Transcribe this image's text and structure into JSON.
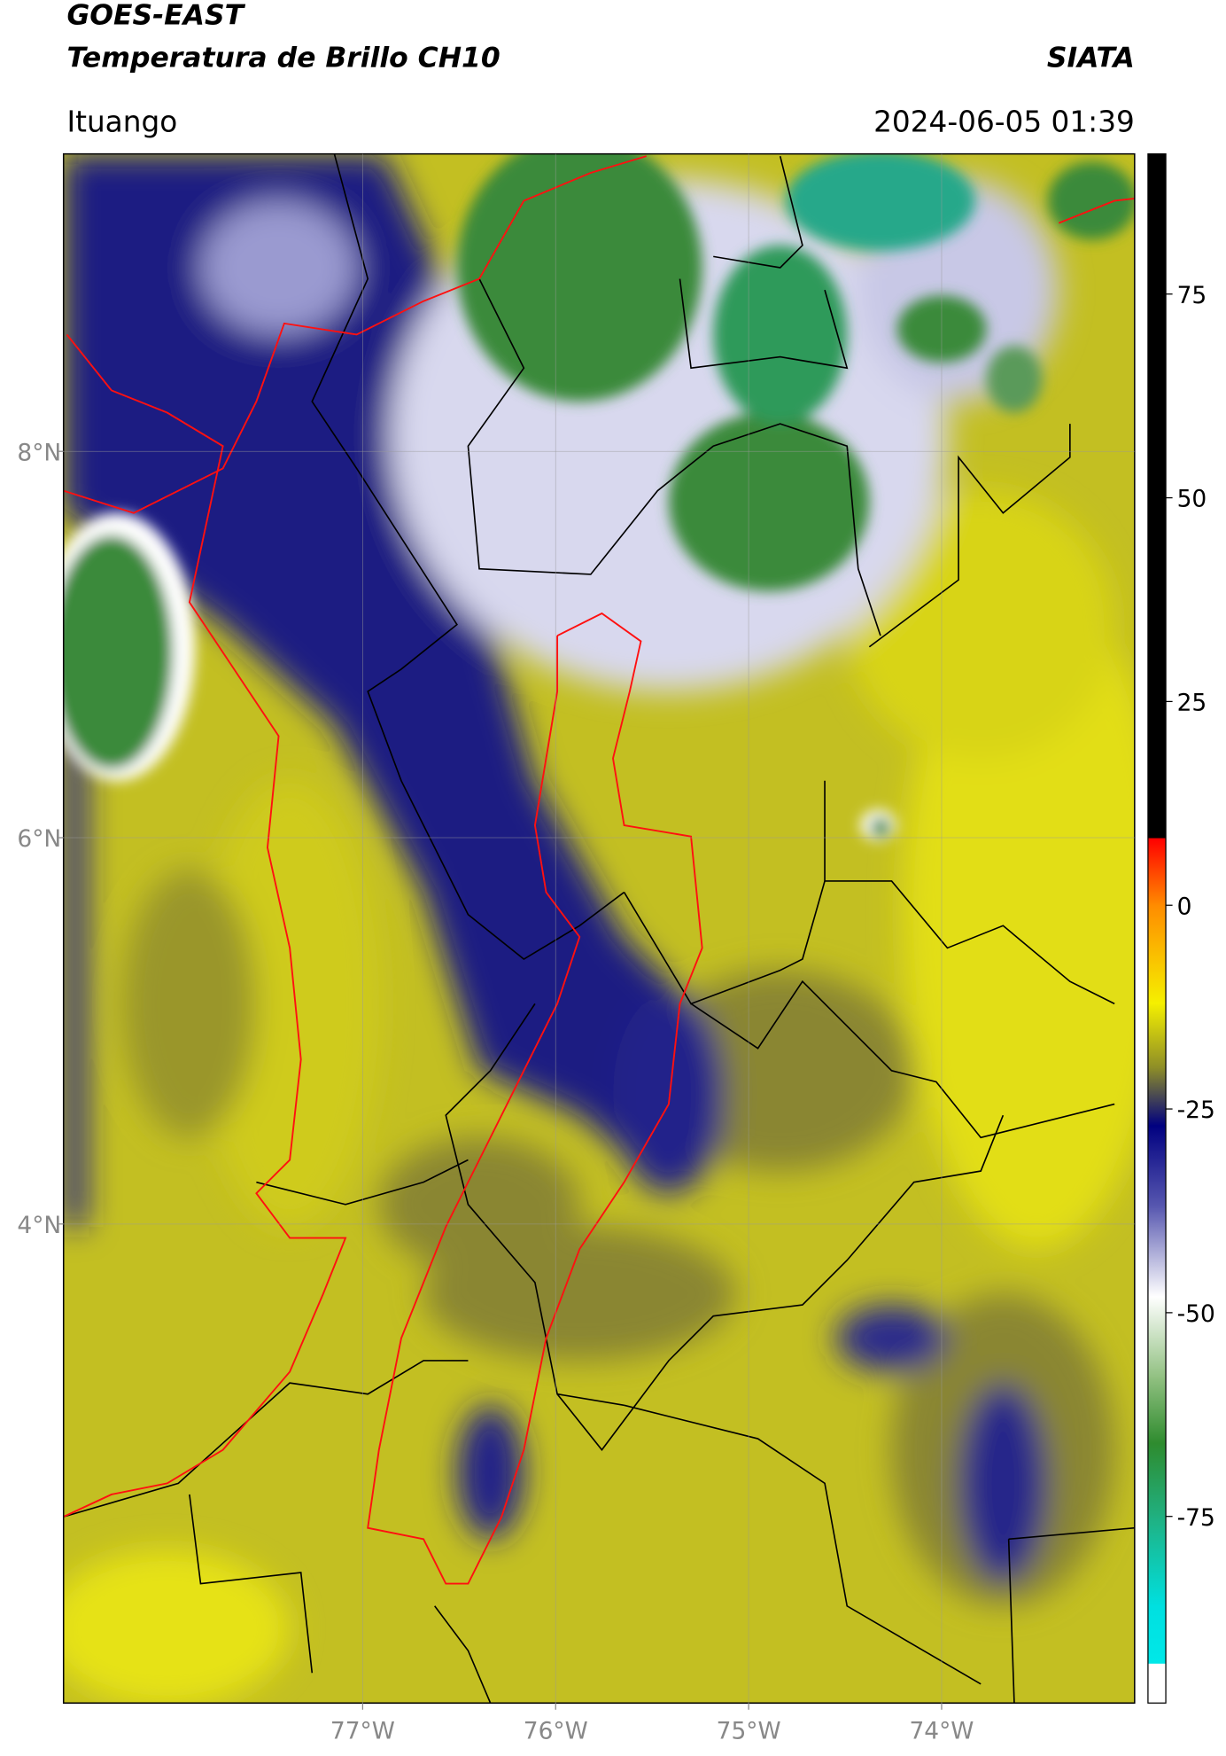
{
  "chart_data": {
    "type": "map",
    "title": "GOES-EAST",
    "subtitle": "Temperatura de Brillo CH10",
    "brand": "SIATA",
    "location": "Ituango",
    "datetime": "2024-06-05 01:39",
    "xlim": [
      -78.55,
      -73.0
    ],
    "ylim": [
      1.52,
      9.54
    ],
    "xticks": [
      {
        "value": -77,
        "label": "77°W"
      },
      {
        "value": -76,
        "label": "76°W"
      },
      {
        "value": -75,
        "label": "75°W"
      },
      {
        "value": -74,
        "label": "74°W"
      }
    ],
    "yticks": [
      {
        "value": 8,
        "label": "8°N"
      },
      {
        "value": 6,
        "label": "6°N"
      },
      {
        "value": 4,
        "label": "4°N"
      }
    ],
    "grid": true,
    "colorbar": {
      "ticks": [
        75,
        50,
        25,
        0,
        -25,
        -50,
        -75
      ],
      "stops": [
        {
          "value": 92.2,
          "color": "#000000"
        },
        {
          "value": 8.3,
          "color": "#000000"
        },
        {
          "value": 8.2,
          "color": "#ff0000"
        },
        {
          "value": 0,
          "color": "#ff8c00"
        },
        {
          "value": -12,
          "color": "#f5f000"
        },
        {
          "value": -20,
          "color": "#8c8c28"
        },
        {
          "value": -27,
          "color": "#000080"
        },
        {
          "value": -37,
          "color": "#5858b0"
        },
        {
          "value": -48,
          "color": "#ffffff"
        },
        {
          "value": -58,
          "color": "#90c080"
        },
        {
          "value": -66,
          "color": "#2e8b2e"
        },
        {
          "value": -75,
          "color": "#20b080"
        },
        {
          "value": -86,
          "color": "#00e0e0"
        },
        {
          "value": -93,
          "color": "#00e8e8"
        },
        {
          "value": -93.1,
          "color": "#ffffff"
        },
        {
          "value": -97.9,
          "color": "#ffffff"
        }
      ]
    }
  }
}
